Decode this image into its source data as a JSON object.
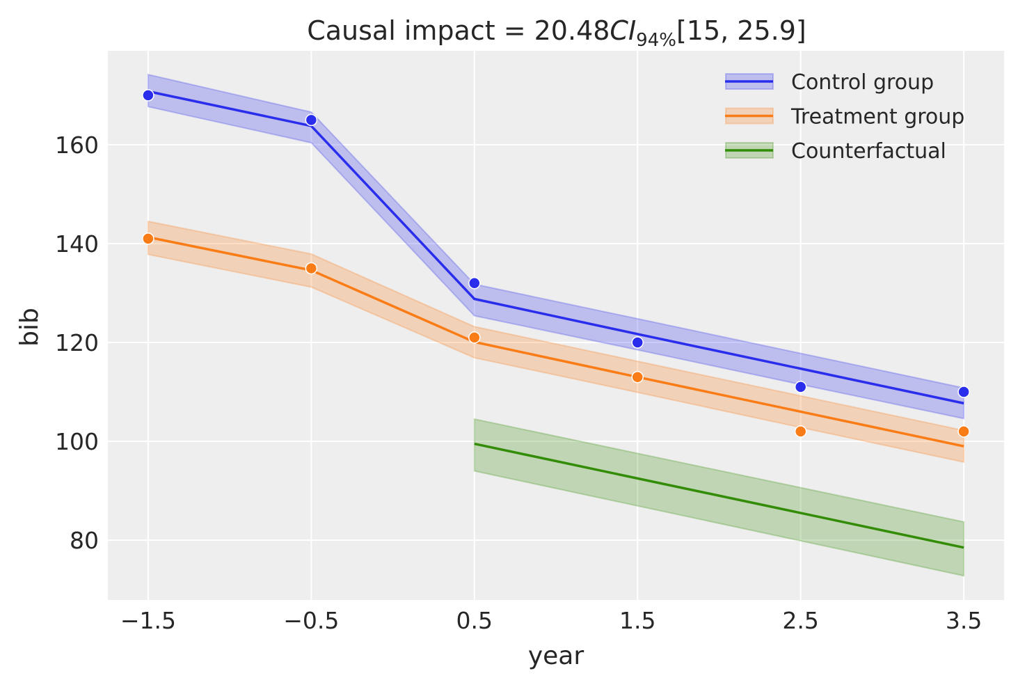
{
  "chart_data": {
    "type": "line",
    "title": {
      "prefix": "Causal impact = 20.48",
      "ci_symbol": "CI",
      "ci_subscript": "94%",
      "suffix": "[15, 25.9]"
    },
    "xlabel": "year",
    "ylabel": "bib",
    "xlim": [
      -1.747,
      3.747
    ],
    "ylim": [
      67.9,
      179.0
    ],
    "xticks": [
      -1.5,
      -0.5,
      0.5,
      1.5,
      2.5,
      3.5
    ],
    "xtick_labels": [
      "−1.5",
      "−0.5",
      "0.5",
      "1.5",
      "2.5",
      "3.5"
    ],
    "yticks": [
      80,
      100,
      120,
      140,
      160
    ],
    "ytick_labels": [
      "80",
      "100",
      "120",
      "140",
      "160"
    ],
    "grid": true,
    "legend_placement": "top-right",
    "series": [
      {
        "name": "Control group",
        "color": "#2a2eec",
        "x": [
          -1.5,
          -0.5,
          0.5,
          1.5,
          2.5,
          3.5
        ],
        "fit": [
          170.8,
          163.8,
          128.8,
          121.7,
          114.7,
          107.7
        ],
        "lower": [
          167.7,
          160.4,
          125.4,
          118.5,
          111.5,
          104.6
        ],
        "upper": [
          174.2,
          166.6,
          131.8,
          124.8,
          117.8,
          110.8
        ],
        "observed": [
          170,
          165,
          132,
          120,
          111,
          110
        ]
      },
      {
        "name": "Treatment group",
        "color": "#fa7c17",
        "x": [
          -1.5,
          -0.5,
          0.5,
          1.5,
          2.5,
          3.5
        ],
        "fit": [
          141.3,
          134.6,
          120.1,
          113.0,
          106.0,
          99.0
        ],
        "lower": [
          137.8,
          131.2,
          116.9,
          109.9,
          102.8,
          95.8
        ],
        "upper": [
          144.5,
          137.9,
          123.2,
          116.2,
          109.2,
          102.2
        ],
        "observed": [
          141,
          135,
          121,
          113,
          102,
          102
        ]
      },
      {
        "name": "Counterfactual",
        "color": "#328c06",
        "x": [
          0.5,
          3.5
        ],
        "fit": [
          99.5,
          78.5
        ],
        "lower": [
          94.0,
          72.8
        ],
        "upper": [
          104.5,
          83.7
        ],
        "observed": []
      }
    ]
  }
}
